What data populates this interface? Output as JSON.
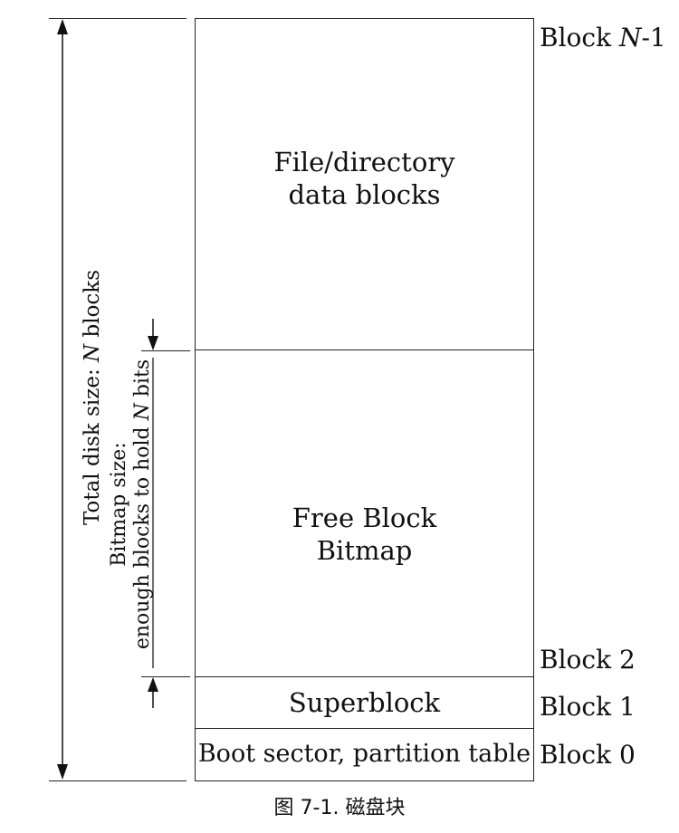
{
  "regions": {
    "data_blocks": {
      "line1": "File/directory",
      "line2": "data blocks"
    },
    "bitmap": {
      "line1": "Free Block",
      "line2": "Bitmap"
    },
    "superblock": "Superblock",
    "boot": "Boot sector, partition table"
  },
  "block_labels": {
    "last": {
      "prefix": "Block ",
      "var": "N",
      "suffix": "-1"
    },
    "block2": "Block 2",
    "block1": "Block 1",
    "block0": "Block 0"
  },
  "total_label": {
    "prefix": "Total disk size: ",
    "var": "N",
    "suffix": " blocks"
  },
  "bitmap_label": {
    "line1": "Bitmap size:",
    "line2_prefix": "enough blocks to hold ",
    "line2_var": "N",
    "line2_suffix": " bits"
  },
  "caption": "图 7-1. 磁盘块"
}
